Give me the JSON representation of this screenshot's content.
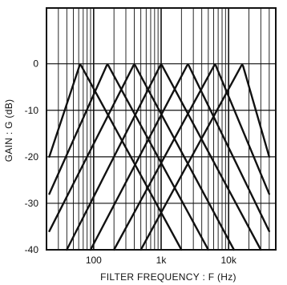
{
  "chart_data": {
    "type": "line",
    "title": "",
    "xlabel": "FILTER   FREQUENCY : F  (Hz)",
    "ylabel": "GAIN : G  (dB)",
    "x_scale": "log",
    "xlim": [
      20,
      50000
    ],
    "ylim": [
      -40,
      12
    ],
    "grid": true,
    "legend": "none",
    "x_ticks": [
      {
        "value": 100,
        "label": "100"
      },
      {
        "value": 1000,
        "label": "1k"
      },
      {
        "value": 10000,
        "label": "10k"
      }
    ],
    "y_ticks": [
      {
        "value": 0,
        "label": "0"
      },
      {
        "value": -10,
        "label": "-10"
      },
      {
        "value": -20,
        "label": "-20"
      },
      {
        "value": -30,
        "label": "-30"
      },
      {
        "value": -40,
        "label": "-40"
      }
    ],
    "series": [
      {
        "center_hz": 63,
        "x": [
          22,
          63,
          2000
        ],
        "y": [
          -20,
          0,
          -40
        ]
      },
      {
        "center_hz": 160,
        "x": [
          22,
          160,
          5000
        ],
        "y": [
          -28,
          0,
          -40
        ]
      },
      {
        "center_hz": 400,
        "x": [
          22,
          400,
          12000
        ],
        "y": [
          -36,
          0,
          -40
        ]
      },
      {
        "center_hz": 1000,
        "x": [
          40,
          1000,
          30000
        ],
        "y": [
          -40,
          0,
          -40
        ]
      },
      {
        "center_hz": 2500,
        "x": [
          90,
          2500,
          40000
        ],
        "y": [
          -40,
          0,
          -36
        ]
      },
      {
        "center_hz": 6300,
        "x": [
          200,
          6300,
          40000
        ],
        "y": [
          -40,
          0,
          -28
        ]
      },
      {
        "center_hz": 16000,
        "x": [
          500,
          16000,
          40000
        ],
        "y": [
          -40,
          0,
          -20
        ]
      }
    ]
  }
}
